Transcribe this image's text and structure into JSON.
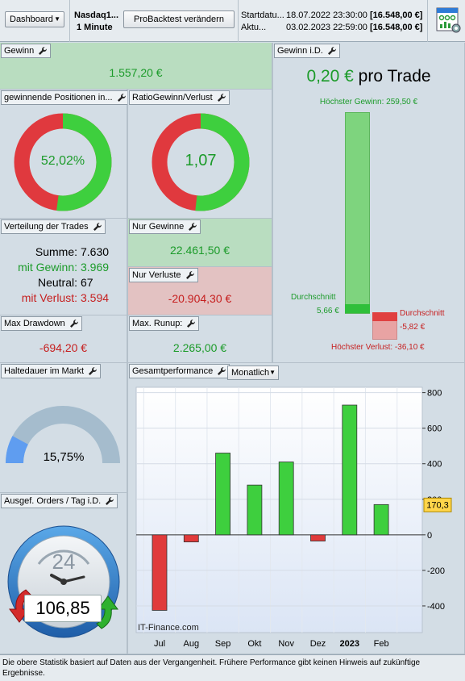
{
  "toolbar": {
    "dashboard_label": "Dashboard",
    "instrument": "Nasdaq1...",
    "timeframe": "1 Minute",
    "change_button": "ProBacktest verändern",
    "start_label": "Startdatu...",
    "start_date": "18.07.2022 23:30:00",
    "start_value": "[16.548,00 €]",
    "current_label": "Aktu...",
    "current_date": "03.02.2023 22:59:00",
    "current_value": "[16.548,00 €]"
  },
  "gewinn": {
    "title": "Gewinn",
    "value": "1.557,20 €"
  },
  "gewinnende": {
    "title": "gewinnende Positionen in...",
    "value": "52,02%",
    "fraction": 0.5202
  },
  "ratio": {
    "title": "RatioGewinn/Verlust",
    "value": "1,07",
    "fraction": 0.517
  },
  "gewinn_id": {
    "title": "Gewinn i.D.",
    "value": "0,20 €",
    "suffix": "pro Trade",
    "max_gain_label": "Höchster Gewinn: 259,50 €",
    "avg_gain_label": "Durchschnitt",
    "avg_gain_value": "5,66 €",
    "avg_loss_label": "Durchschnitt",
    "avg_loss_value": "-5,82 €",
    "max_loss_label": "Höchster Verlust: -36,10 €",
    "max_gain": 259.5,
    "avg_gain": 5.66,
    "avg_loss": -5.82,
    "max_loss": -36.1
  },
  "verteilung": {
    "title": "Verteilung der Trades",
    "summe_label": "Summe:",
    "summe": "7.630",
    "gewinn_label": "mit Gewinn:",
    "gewinn": "3.969",
    "neutral_label": "Neutral:",
    "neutral": "67",
    "verlust_label": "mit Verlust:",
    "verlust": "3.594"
  },
  "nur_gewinne": {
    "title": "Nur Gewinne",
    "value": "22.461,50 €"
  },
  "nur_verluste": {
    "title": "Nur Verluste",
    "value": "-20.904,30 €"
  },
  "max_drawdown": {
    "title": "Max Drawdown",
    "value": "-694,20 €"
  },
  "max_runup": {
    "title": "Max. Runup:",
    "value": "2.265,00 €"
  },
  "haltedauer": {
    "title": "Haltedauer im Markt",
    "value": "15,75%",
    "fraction": 0.1575
  },
  "orders": {
    "title": "Ausgef. Orders / Tag i.D.",
    "value": "106,85",
    "clock_number": "24"
  },
  "gesamt": {
    "title": "Gesamtperformance",
    "period": "Monatlich",
    "watermark": "IT-Finance.com",
    "current_marker": "170,3"
  },
  "chart_data": {
    "type": "bar",
    "categories": [
      "Jul",
      "Aug",
      "Sep",
      "Okt",
      "Nov",
      "Dez",
      "2023",
      "Feb"
    ],
    "values": [
      -425,
      -40,
      460,
      280,
      410,
      -35,
      730,
      170.3
    ],
    "ylim": [
      -550,
      830
    ],
    "yticks": [
      800,
      600,
      400,
      200,
      0,
      -200,
      -400
    ],
    "colors": {
      "positive": "#3ecf3e",
      "negative": "#e03b3b"
    }
  },
  "footer": {
    "text": "Die obere Statistik basiert auf Daten aus der Vergangenheit. Frühere Performance gibt keinen Hinweis auf zukünftige Ergebnisse."
  }
}
